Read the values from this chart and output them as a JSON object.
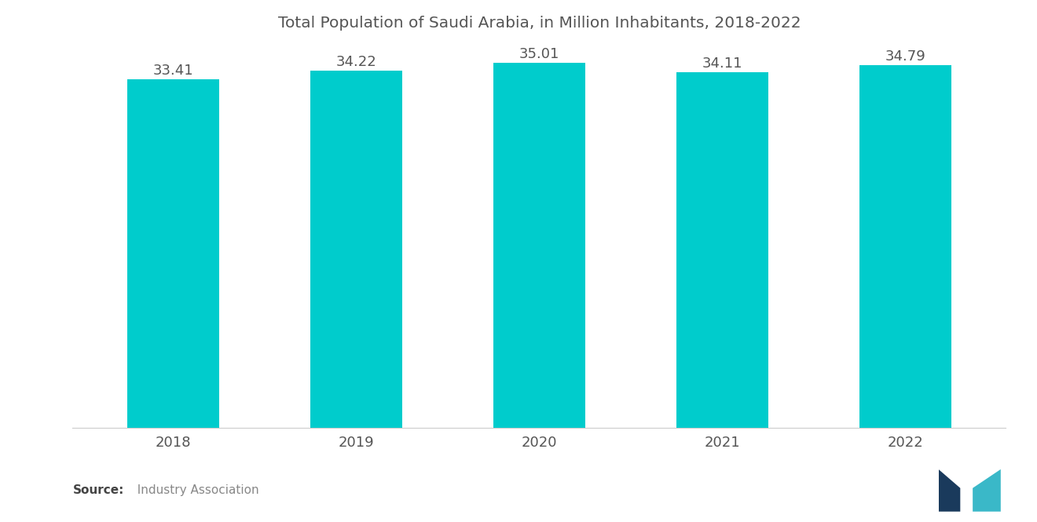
{
  "title": "Total Population of Saudi Arabia, in Million Inhabitants, 2018-2022",
  "categories": [
    "2018",
    "2019",
    "2020",
    "2021",
    "2022"
  ],
  "values": [
    33.41,
    34.22,
    35.01,
    34.11,
    34.79
  ],
  "bar_color": "#00CCCC",
  "background_color": "#FFFFFF",
  "text_color": "#555555",
  "title_fontsize": 14.5,
  "label_fontsize": 13,
  "tick_fontsize": 13,
  "source_bold": "Source:",
  "source_normal": "  Industry Association",
  "ylim": [
    0,
    36.5
  ],
  "bar_width": 0.5
}
